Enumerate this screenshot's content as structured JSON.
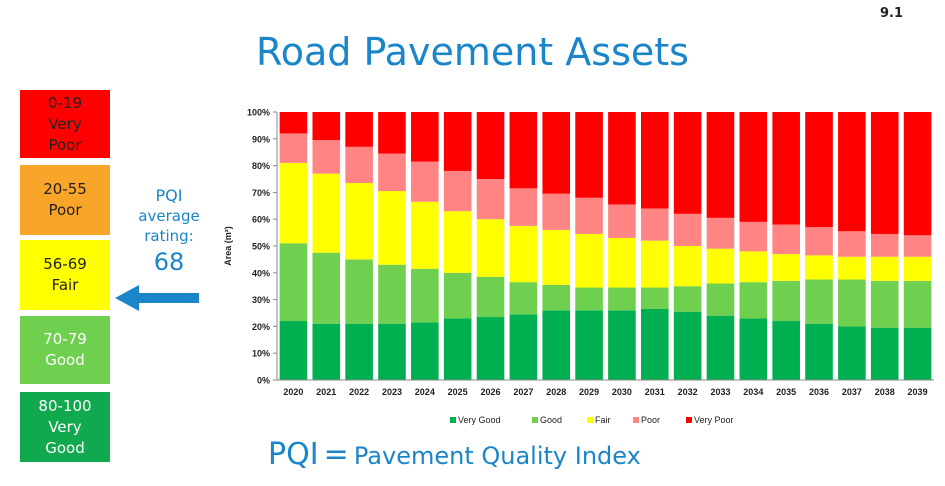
{
  "slide_number": "9.1",
  "title": "Road Pavement Assets",
  "pqi_legend": [
    {
      "range": "0-19",
      "lines": [
        "Very",
        "Poor"
      ],
      "color": "#ff0000",
      "text_color": "#222222"
    },
    {
      "range": "20-55",
      "lines": [
        "Poor"
      ],
      "color": "#f9a52a",
      "text_color": "#222222"
    },
    {
      "range": "56-69",
      "lines": [
        "Fair"
      ],
      "color": "#ffff00",
      "text_color": "#222222"
    },
    {
      "range": "70-79",
      "lines": [
        "Good"
      ],
      "color": "#6fcf4f",
      "text_color": "#ffffff"
    },
    {
      "range": "80-100",
      "lines": [
        "Very",
        "Good"
      ],
      "color": "#11a94e",
      "text_color": "#ffffff"
    }
  ],
  "pqi_average": {
    "line1": "PQI",
    "line2": "average",
    "line3": "rating:",
    "value": "68"
  },
  "footer": {
    "abbr": "PQI",
    "equals": "=",
    "full": "Pavement Quality Index"
  },
  "chart_data": {
    "type": "bar",
    "stacked": true,
    "ylabel": "Area (m²)",
    "ylim": [
      0,
      100
    ],
    "yticks": [
      "0%",
      "10%",
      "20%",
      "30%",
      "40%",
      "50%",
      "60%",
      "70%",
      "80%",
      "90%",
      "100%"
    ],
    "categories": [
      "2020",
      "2021",
      "2022",
      "2023",
      "2024",
      "2025",
      "2026",
      "2027",
      "2028",
      "2029",
      "2030",
      "2031",
      "2032",
      "2033",
      "2034",
      "2035",
      "2036",
      "2037",
      "2038",
      "2039"
    ],
    "series": [
      {
        "name": "Very Good",
        "color": "#00b050",
        "values": [
          22,
          21,
          21,
          21,
          21.5,
          23,
          23.5,
          24.5,
          26,
          26,
          26,
          26.5,
          25.5,
          24,
          23,
          22,
          21,
          20,
          19.5,
          19.5
        ]
      },
      {
        "name": "Good",
        "color": "#6fcf4f",
        "values": [
          29,
          26.5,
          24,
          22,
          20,
          17,
          15,
          12,
          9.5,
          8.5,
          8.5,
          8,
          9.5,
          12,
          13.5,
          15,
          16.5,
          17.5,
          17.5,
          17.5
        ]
      },
      {
        "name": "Fair",
        "color": "#ffff00",
        "values": [
          30,
          29.5,
          28.5,
          27.5,
          25,
          23,
          21.5,
          21,
          20.5,
          20,
          18.5,
          17.5,
          15,
          13,
          11.5,
          10,
          9,
          8.5,
          9,
          9
        ]
      },
      {
        "name": "Poor",
        "color": "#ff8585",
        "values": [
          11,
          12.5,
          13.5,
          14,
          15,
          15,
          15,
          14,
          13.5,
          13.5,
          12.5,
          12,
          12,
          11.5,
          11,
          11,
          10.5,
          9.5,
          8.5,
          8
        ]
      },
      {
        "name": "Very Poor",
        "color": "#ff0000",
        "values": [
          8,
          10.5,
          13,
          15.5,
          18.5,
          22,
          25,
          28.5,
          30.5,
          32,
          34.5,
          36,
          38,
          39.5,
          41,
          42,
          43,
          44.5,
          45.5,
          46
        ]
      }
    ],
    "legend_position": "bottom",
    "grid": false
  }
}
